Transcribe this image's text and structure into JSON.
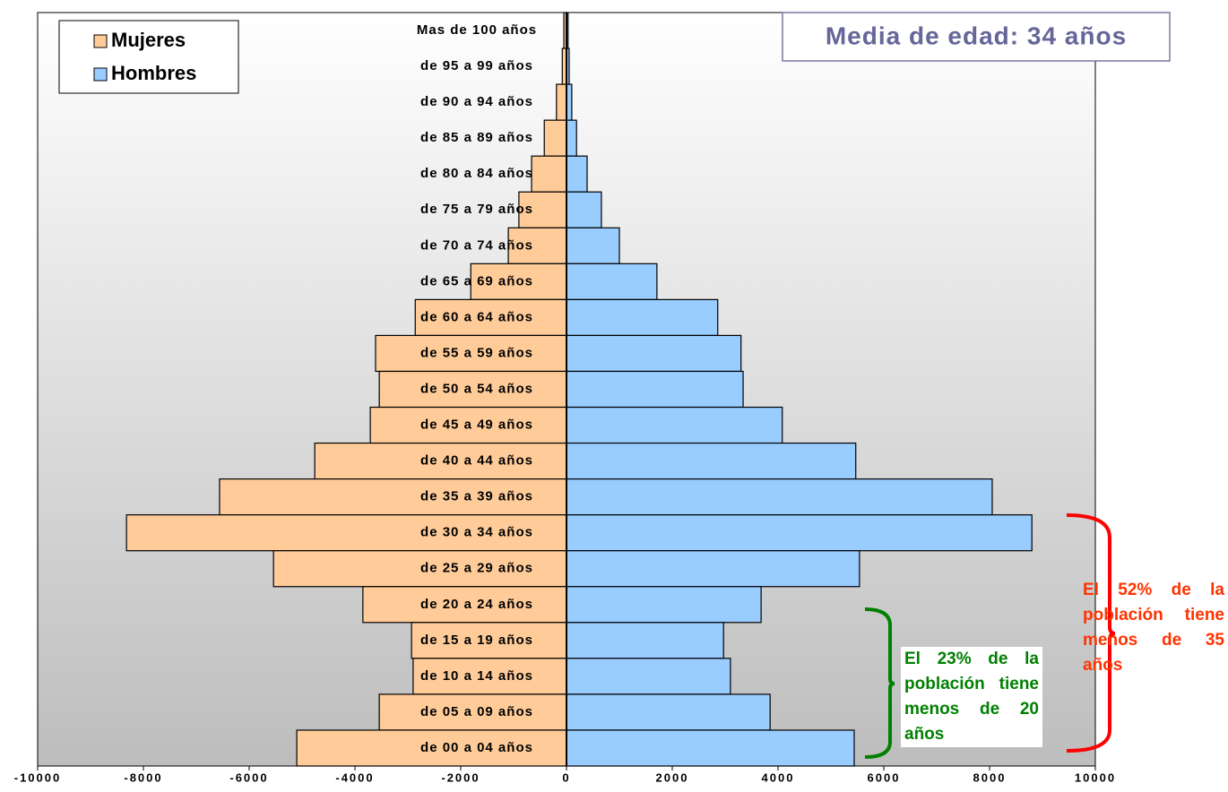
{
  "chart_data": {
    "type": "pyramid",
    "categories": [
      "Mas de 100 años",
      "de 95 a 99 años",
      "de 90 a 94 años",
      "de 85 a 89 años",
      "de 80 a 84 años",
      "de 75 a 79 años",
      "de 70 a 74 años",
      "de 65 a 69 años",
      "de 60 a 64 años",
      "de 55 a 59 años",
      "de 50 a 54 años",
      "de 45 a 49 años",
      "de 40 a 44 años",
      "de 35 a 39 años",
      "de 30 a 34 años",
      "de 25 a 29 años",
      "de 20 a 24 años",
      "de 15 a 19 años",
      "de 10 a 14 años",
      "de 05 a 09 años",
      "de 00 a 04 años"
    ],
    "series": [
      {
        "name": "Mujeres",
        "color": "#ffcc99",
        "values": [
          -50,
          -80,
          -190,
          -420,
          -660,
          -900,
          -1100,
          -1810,
          -2860,
          -3610,
          -3540,
          -3710,
          -4760,
          -6560,
          -8320,
          -5540,
          -3850,
          -2930,
          -2900,
          -3540,
          -5100
        ]
      },
      {
        "name": "Hombres",
        "color": "#99ccff",
        "values": [
          30,
          50,
          100,
          190,
          390,
          660,
          1000,
          1710,
          2860,
          3300,
          3340,
          4080,
          5470,
          8050,
          8800,
          5540,
          3680,
          2970,
          3100,
          3850,
          5440
        ]
      }
    ],
    "xlim": [
      -10000,
      10000
    ],
    "xticks": [
      -10000,
      -8000,
      -6000,
      -4000,
      -2000,
      0,
      2000,
      4000,
      6000,
      8000,
      10000
    ],
    "annotations": [
      "Media de edad: 34 años",
      "El 52% de la población tiene menos de 35 años",
      "El 23% de la población tiene menos de 20 años"
    ]
  }
}
